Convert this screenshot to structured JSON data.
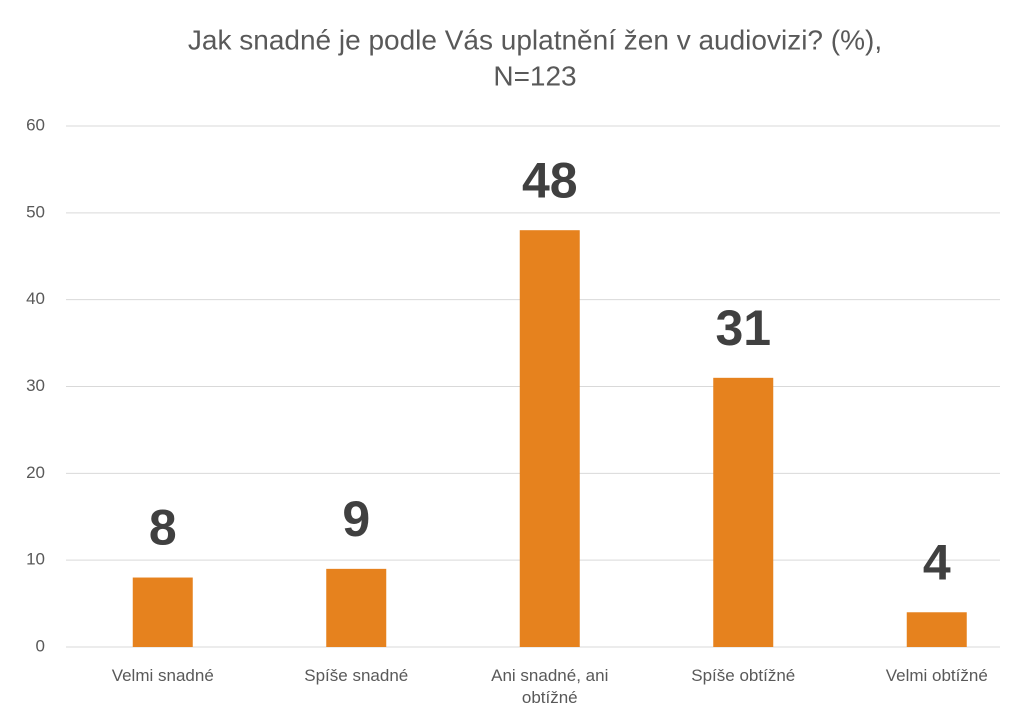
{
  "chart_data": {
    "type": "bar",
    "title": [
      "Jak snadné je podle Vás uplatnění žen v audiovizi? (%),",
      "N=123"
    ],
    "categories": [
      "Velmi snadné",
      "Spíše snadné",
      "Ani snadné, ani obtížné",
      "Spíše obtížné",
      "Velmi obtížné"
    ],
    "values": [
      8,
      9,
      48,
      31,
      4
    ],
    "color": "#e6821e",
    "ylim": [
      0,
      60
    ],
    "yticks": [
      0,
      10,
      20,
      30,
      40,
      50,
      60
    ],
    "grid": true
  }
}
